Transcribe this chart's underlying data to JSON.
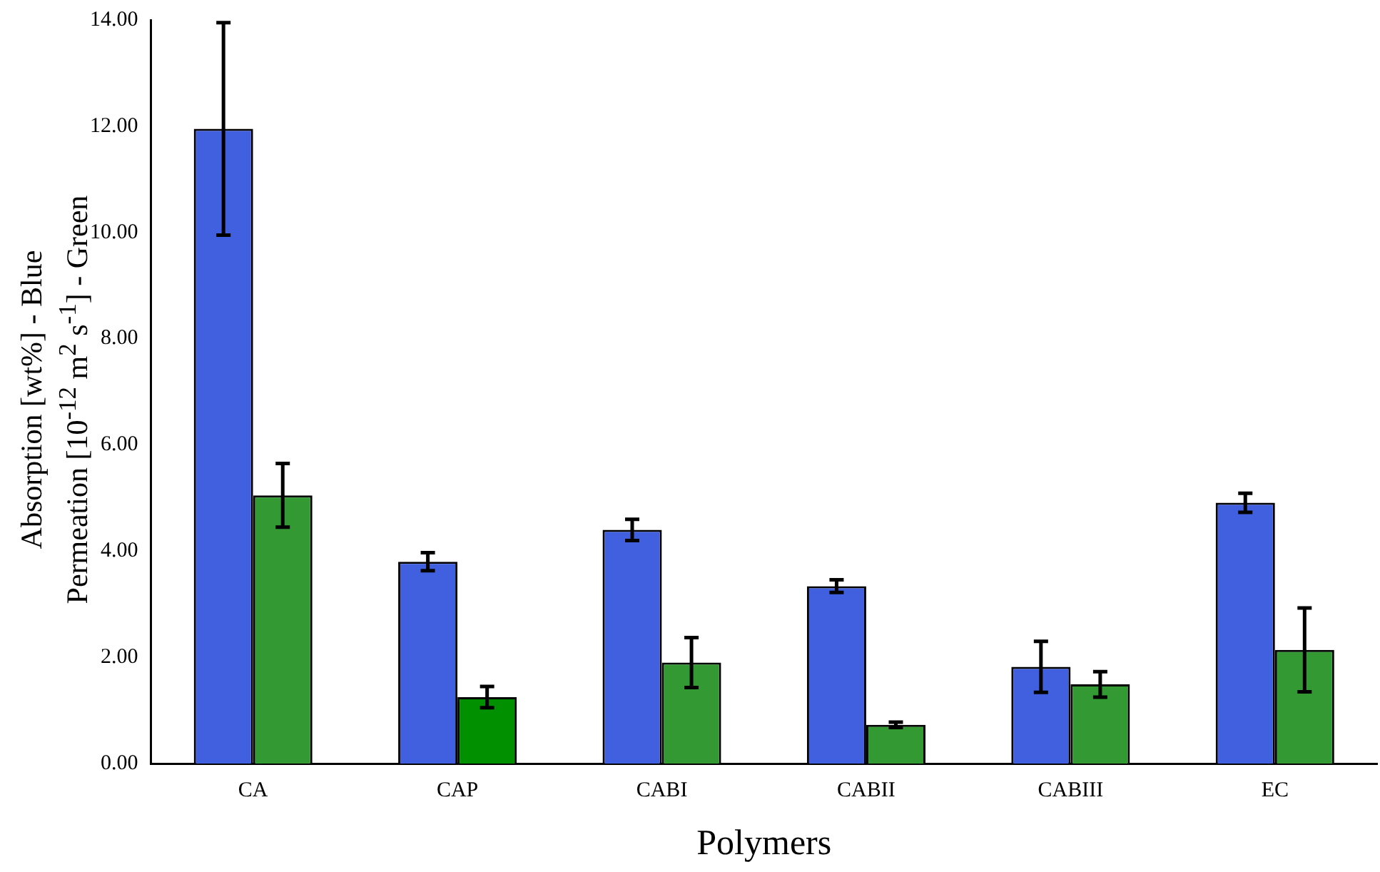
{
  "chart_data": {
    "type": "bar",
    "xlabel": "Polymers",
    "ylabel": "Absorption [wt%] - Blue\nPermeation [10$^{-12}$ m$^{2}$ s$^{-1}$] - Green",
    "categories": [
      "CA",
      "CAP",
      "CABI",
      "CABII",
      "CABIII",
      "EC"
    ],
    "series": [
      {
        "color": "#4060e0",
        "values": [
          11.95,
          3.8,
          4.4,
          3.34,
          1.82,
          4.91
        ],
        "errors": [
          2.0,
          0.17,
          0.2,
          0.12,
          0.48,
          0.18
        ]
      },
      {
        "colors": [
          "#339933",
          "#009000",
          "#339933",
          "#339933",
          "#339933",
          "#339933"
        ],
        "values": [
          5.05,
          1.25,
          1.9,
          0.73,
          1.49,
          2.14
        ],
        "errors": [
          0.6,
          0.2,
          0.47,
          0.05,
          0.24,
          0.79
        ]
      }
    ],
    "ylim": [
      0,
      14
    ],
    "yticks": [
      {
        "value": 0,
        "label": "0.00"
      },
      {
        "value": 2,
        "label": "2.00"
      },
      {
        "value": 4,
        "label": "4.00"
      },
      {
        "value": 6,
        "label": "6.00"
      },
      {
        "value": 8,
        "label": "8.00"
      },
      {
        "value": 10,
        "label": "10.00"
      },
      {
        "value": 12,
        "label": "12.00"
      },
      {
        "value": 14,
        "label": "14.00"
      }
    ],
    "grid": false,
    "legend": false
  }
}
